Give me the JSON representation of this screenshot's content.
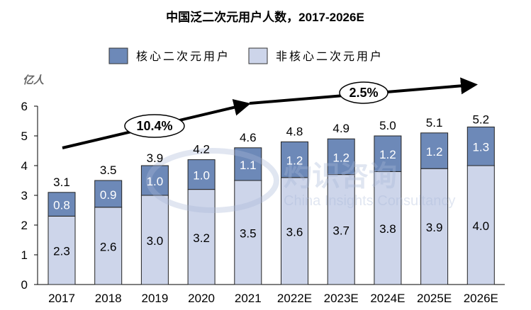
{
  "chart_data": {
    "type": "bar",
    "stacked": true,
    "title": "中国泛二次元用户人数，2017-2026E",
    "ylabel": "亿人",
    "ylim": [
      0,
      6
    ],
    "yticks": [
      0,
      1,
      2,
      3,
      4,
      5,
      6
    ],
    "categories": [
      "2017",
      "2018",
      "2019",
      "2020",
      "2021",
      "2022E",
      "2023E",
      "2024E",
      "2025E",
      "2026E"
    ],
    "series": [
      {
        "name": "非核心二次元用户",
        "color": "#cdd5ea",
        "values": [
          2.3,
          2.6,
          3.0,
          3.2,
          3.5,
          3.6,
          3.7,
          3.8,
          3.9,
          4.0
        ]
      },
      {
        "name": "核心二次元用户",
        "color": "#6d89b8",
        "values": [
          0.8,
          0.9,
          1.0,
          1.0,
          1.1,
          1.2,
          1.2,
          1.2,
          1.2,
          1.3
        ]
      }
    ],
    "totals": [
      3.1,
      3.5,
      3.9,
      4.2,
      4.6,
      4.8,
      4.9,
      5.0,
      5.1,
      5.2
    ],
    "legend_order": [
      "核心二次元用户",
      "非核心二次元用户"
    ],
    "legend_position": "top",
    "grid": false,
    "annotations": [
      {
        "text": "10.4%",
        "from": "2017",
        "to": "2021"
      },
      {
        "text": "2.5%",
        "from": "2021",
        "to": "2026E"
      }
    ],
    "watermark": {
      "cn": "灼识咨询",
      "en": "China Insights Consultancy"
    }
  }
}
